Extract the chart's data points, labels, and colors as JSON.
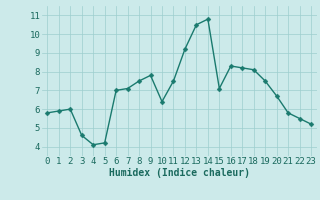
{
  "x": [
    0,
    1,
    2,
    3,
    4,
    5,
    6,
    7,
    8,
    9,
    10,
    11,
    12,
    13,
    14,
    15,
    16,
    17,
    18,
    19,
    20,
    21,
    22,
    23
  ],
  "y": [
    5.8,
    5.9,
    6.0,
    4.6,
    4.1,
    4.2,
    7.0,
    7.1,
    7.5,
    7.8,
    6.4,
    7.5,
    9.2,
    10.5,
    10.8,
    7.1,
    8.3,
    8.2,
    8.1,
    7.5,
    6.7,
    5.8,
    5.5,
    5.2
  ],
  "xlabel": "Humidex (Indice chaleur)",
  "ylim": [
    3.5,
    11.5
  ],
  "xlim": [
    -0.5,
    23.5
  ],
  "yticks": [
    4,
    5,
    6,
    7,
    8,
    9,
    10,
    11
  ],
  "xticks": [
    0,
    1,
    2,
    3,
    4,
    5,
    6,
    7,
    8,
    9,
    10,
    11,
    12,
    13,
    14,
    15,
    16,
    17,
    18,
    19,
    20,
    21,
    22,
    23
  ],
  "line_color": "#1a7a6e",
  "marker_color": "#1a7a6e",
  "bg_color": "#cceaea",
  "grid_color": "#9ecece",
  "xlabel_color": "#1a6a5e",
  "xlabel_fontsize": 7,
  "tick_fontsize": 6.5,
  "marker_size": 2.5,
  "line_width": 1.0
}
